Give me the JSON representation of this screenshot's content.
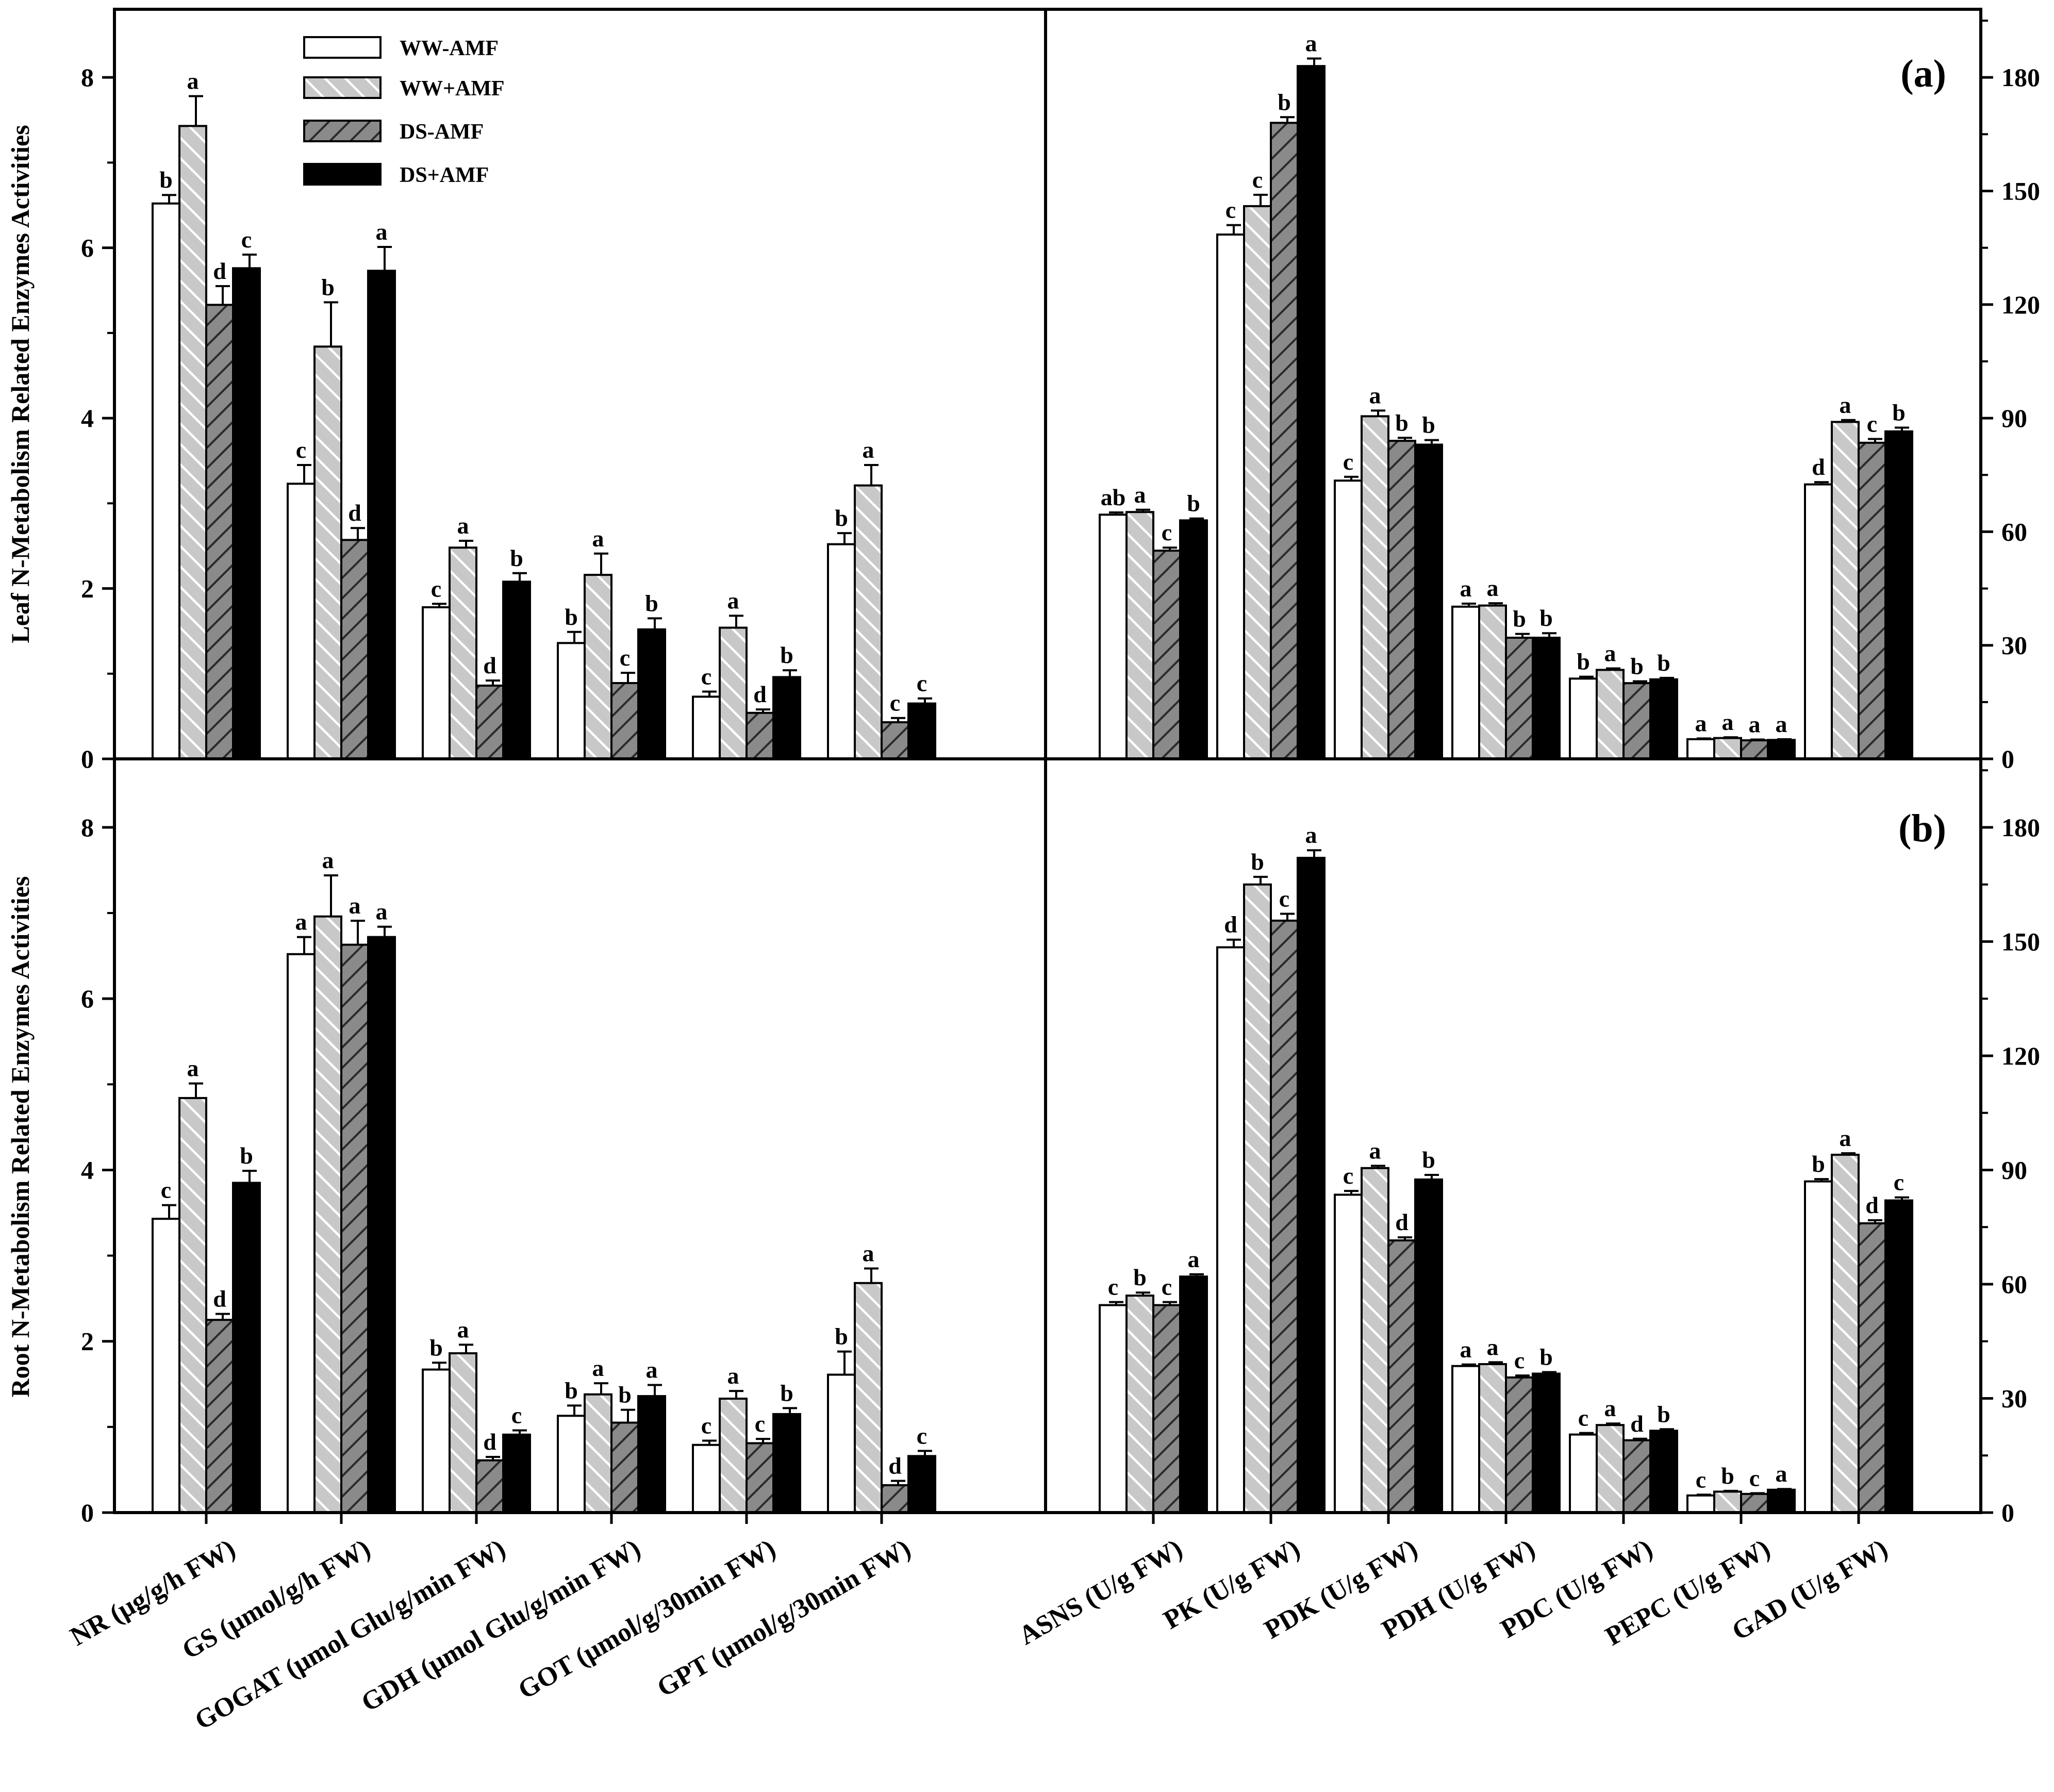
{
  "legend": {
    "entries": [
      "WW-AMF",
      "WW+AMF",
      "DS-AMF",
      "DS+AMF"
    ],
    "placement": "top-left of panel (a)"
  },
  "colors": {
    "bar1": "#ffffff",
    "bar2": "#c8c8c8",
    "bar3": "#8a8a8a",
    "bar4": "#000000",
    "stroke": "#000000"
  },
  "chart_data": [
    {
      "type": "bar",
      "panel_label": "(a)",
      "ylabel": "Leaf N-Metabolism Related Enzymes Activities",
      "left": {
        "categories": [
          "NR (μg/g/h FW)",
          "GS (μmol/g/h FW)",
          "GOGAT (μmol Glu/g/min FW)",
          "GDH (μmol Glu/g/min FW)",
          "GOT (μmol/g/30min FW)",
          "GPT (μmol/g/30min FW)"
        ],
        "ylim": [
          0,
          8.8
        ],
        "yticks": [
          0,
          2,
          4,
          6,
          8
        ],
        "series": [
          {
            "name": "WW-AMF",
            "values": [
              6.52,
              3.23,
              1.78,
              1.36,
              0.73,
              2.52
            ],
            "errors": [
              0.1,
              0.22,
              0.04,
              0.13,
              0.06,
              0.13
            ],
            "letters": [
              "b",
              "c",
              "c",
              "b",
              "c",
              "b"
            ]
          },
          {
            "name": "WW+AMF",
            "values": [
              7.43,
              4.84,
              2.48,
              2.16,
              1.54,
              3.21
            ],
            "errors": [
              0.35,
              0.52,
              0.08,
              0.25,
              0.14,
              0.24
            ],
            "letters": [
              "a",
              "b",
              "a",
              "a",
              "a",
              "a"
            ]
          },
          {
            "name": "DS-AMF",
            "values": [
              5.33,
              2.57,
              0.86,
              0.89,
              0.54,
              0.43
            ],
            "errors": [
              0.22,
              0.14,
              0.06,
              0.12,
              0.04,
              0.05
            ],
            "letters": [
              "d",
              "d",
              "d",
              "c",
              "d",
              "c"
            ]
          },
          {
            "name": "DS+AMF",
            "values": [
              5.76,
              5.73,
              2.08,
              1.52,
              0.96,
              0.65
            ],
            "errors": [
              0.16,
              0.28,
              0.1,
              0.13,
              0.08,
              0.06
            ],
            "letters": [
              "c",
              "a",
              "b",
              "b",
              "b",
              "c"
            ]
          }
        ]
      },
      "right": {
        "categories": [
          "ASNS (U/g FW)",
          "PK (U/g FW)",
          "PDK (U/g FW)",
          "PDH (U/g FW)",
          "PDC (U/g FW)",
          "PEPC (U/g FW)",
          "GAD (U/g FW)"
        ],
        "ylim": [
          0,
          198
        ],
        "yticks": [
          0,
          30,
          60,
          90,
          120,
          150,
          180
        ],
        "series": [
          {
            "name": "WW-AMF",
            "values": [
              64.5,
              138.5,
              73.5,
              40.2,
              21.2,
              5.2,
              72.5
            ],
            "errors": [
              0.6,
              2.5,
              1.0,
              0.8,
              0.5,
              0.2,
              0.6
            ],
            "letters": [
              "ab",
              "c",
              "c",
              "a",
              "b",
              "a",
              "d"
            ]
          },
          {
            "name": "WW+AMF",
            "values": [
              65.2,
              146.0,
              90.5,
              40.5,
              23.5,
              5.5,
              89.0
            ],
            "errors": [
              0.6,
              3.0,
              1.5,
              0.6,
              0.4,
              0.2,
              0.5
            ],
            "letters": [
              "a",
              "c",
              "a",
              "a",
              "a",
              "a",
              "a"
            ]
          },
          {
            "name": "DS-AMF",
            "values": [
              55.0,
              168.0,
              84.0,
              32.0,
              20.0,
              4.9,
              83.5
            ],
            "errors": [
              0.8,
              1.5,
              0.8,
              1.0,
              0.5,
              0.2,
              1.0
            ],
            "letters": [
              "c",
              "b",
              "b",
              "b",
              "b",
              "a",
              "c"
            ]
          },
          {
            "name": "DS+AMF",
            "values": [
              63.0,
              183.0,
              83.0,
              32.0,
              21.0,
              5.0,
              86.5
            ],
            "errors": [
              0.5,
              2.0,
              1.2,
              1.2,
              0.4,
              0.2,
              1.0
            ],
            "letters": [
              "b",
              "a",
              "b",
              "b",
              "b",
              "a",
              "b"
            ]
          }
        ]
      }
    },
    {
      "type": "bar",
      "panel_label": "(b)",
      "ylabel": "Root N-Metabolism Related Enzymes Activities",
      "left": {
        "categories": [
          "NR (μg/g/h FW)",
          "GS (μmol/g/h FW)",
          "GOGAT (μmol Glu/g/min FW)",
          "GDH (μmol Glu/g/min FW)",
          "GOT (μmol/g/30min FW)",
          "GPT (μmol/g/30min FW)"
        ],
        "ylim": [
          0,
          8.8
        ],
        "yticks": [
          0,
          2,
          4,
          6,
          8
        ],
        "series": [
          {
            "name": "WW-AMF",
            "values": [
              3.43,
              6.52,
              1.67,
              1.13,
              0.79,
              1.61
            ],
            "errors": [
              0.16,
              0.2,
              0.08,
              0.12,
              0.05,
              0.27
            ],
            "letters": [
              "c",
              "a",
              "b",
              "b",
              "c",
              "b"
            ]
          },
          {
            "name": "WW+AMF",
            "values": [
              4.84,
              6.96,
              1.86,
              1.38,
              1.33,
              2.68
            ],
            "errors": [
              0.17,
              0.48,
              0.1,
              0.13,
              0.09,
              0.17
            ],
            "letters": [
              "a",
              "a",
              "a",
              "a",
              "a",
              "a"
            ]
          },
          {
            "name": "DS-AMF",
            "values": [
              2.25,
              6.63,
              0.61,
              1.05,
              0.81,
              0.32
            ],
            "errors": [
              0.07,
              0.28,
              0.04,
              0.15,
              0.05,
              0.05
            ],
            "letters": [
              "d",
              "a",
              "d",
              "b",
              "c",
              "d"
            ]
          },
          {
            "name": "DS+AMF",
            "values": [
              3.85,
              6.72,
              0.91,
              1.36,
              1.15,
              0.66
            ],
            "errors": [
              0.14,
              0.12,
              0.05,
              0.13,
              0.07,
              0.06
            ],
            "letters": [
              "b",
              "a",
              "c",
              "a",
              "b",
              "c"
            ]
          }
        ]
      },
      "right": {
        "categories": [
          "ASNS (U/g FW)",
          "PK (U/g FW)",
          "PDK (U/g FW)",
          "PDH (U/g FW)",
          "PDC (U/g FW)",
          "PEPC (U/g FW)",
          "GAD (U/g FW)"
        ],
        "ylim": [
          0,
          198
        ],
        "yticks": [
          0,
          30,
          60,
          90,
          120,
          150,
          180
        ],
        "series": [
          {
            "name": "WW-AMF",
            "values": [
              54.5,
              148.5,
              83.5,
              38.5,
              20.5,
              4.5,
              87.0
            ],
            "errors": [
              0.8,
              2.0,
              1.0,
              0.4,
              0.4,
              0.2,
              0.6
            ],
            "letters": [
              "c",
              "d",
              "c",
              "a",
              "c",
              "c",
              "b"
            ]
          },
          {
            "name": "WW+AMF",
            "values": [
              57.0,
              165.0,
              90.5,
              39.0,
              23.0,
              5.5,
              94.0
            ],
            "errors": [
              0.8,
              2.0,
              0.6,
              0.5,
              0.4,
              0.2,
              0.4
            ],
            "letters": [
              "b",
              "b",
              "a",
              "a",
              "a",
              "b",
              "a"
            ]
          },
          {
            "name": "DS-AMF",
            "values": [
              54.5,
              155.5,
              71.5,
              35.5,
              19.0,
              4.9,
              76.0
            ],
            "errors": [
              0.8,
              1.8,
              0.8,
              0.5,
              0.4,
              0.2,
              0.8
            ],
            "letters": [
              "c",
              "c",
              "d",
              "c",
              "d",
              "c",
              "d"
            ]
          },
          {
            "name": "DS+AMF",
            "values": [
              62.0,
              172.0,
              87.5,
              36.5,
              21.5,
              6.0,
              82.0
            ],
            "errors": [
              0.6,
              2.0,
              1.2,
              0.4,
              0.4,
              0.2,
              0.8
            ],
            "letters": [
              "a",
              "a",
              "b",
              "b",
              "b",
              "a",
              "c"
            ]
          }
        ]
      }
    }
  ]
}
